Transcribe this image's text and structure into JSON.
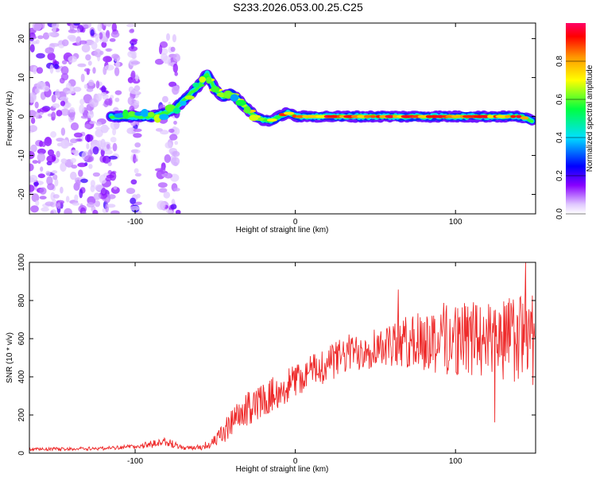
{
  "title": "S233.2026.053.00.25.C25",
  "chart_data": [
    {
      "type": "heatmap",
      "xlabel": "Height of straight line (km)",
      "ylabel": "Frequency (Hz)",
      "xlim": [
        -166,
        150
      ],
      "ylim": [
        -25,
        24
      ],
      "x_ticks": [
        -100,
        0,
        100
      ],
      "y_ticks": [
        -20,
        -10,
        0,
        10,
        20
      ],
      "ridge": {
        "description_points_x": [
          -115,
          -100,
          -90,
          -80,
          -75,
          -70,
          -65,
          -60,
          -55,
          -50,
          -45,
          -40,
          -35,
          -30,
          -25,
          -20,
          -15,
          -10,
          -5,
          0,
          10,
          20,
          40,
          60,
          80,
          100,
          120,
          140,
          148
        ],
        "frequency_hz": [
          0,
          0,
          0,
          1,
          2,
          4,
          6,
          8,
          11,
          7,
          5,
          6,
          4,
          2,
          0,
          -1,
          -1,
          0,
          1,
          0,
          0,
          0,
          0,
          0,
          0,
          0,
          0,
          0,
          -1
        ]
      },
      "noisy_region_x": [
        -166,
        -110
      ],
      "colorbar": {
        "label": "Normalized spectral amplitude",
        "range": [
          0,
          1
        ],
        "ticks": [
          "0.0",
          "0.2",
          "0.4",
          "0.6",
          "0.8"
        ]
      }
    },
    {
      "type": "line",
      "xlabel": "Height of straight line (km)",
      "ylabel": "SNR (10 * v/v)",
      "xlim": [
        -166,
        150
      ],
      "ylim": [
        0,
        1000
      ],
      "x_ticks": [
        -100,
        0,
        100
      ],
      "y_ticks": [
        0,
        200,
        400,
        600,
        800,
        1000
      ],
      "series": [
        {
          "name": "SNR",
          "color": "#ff2020",
          "envelope_x": [
            -166,
            -120,
            -100,
            -90,
            -80,
            -70,
            -60,
            -50,
            -40,
            -30,
            -20,
            -10,
            0,
            10,
            20,
            30,
            40,
            50,
            60,
            70,
            80,
            90,
            100,
            110,
            120,
            130,
            140,
            150
          ],
          "envelope_mean": [
            20,
            25,
            35,
            45,
            60,
            25,
            30,
            60,
            150,
            230,
            280,
            330,
            380,
            430,
            470,
            510,
            540,
            560,
            570,
            580,
            590,
            600,
            600,
            600,
            600,
            600,
            600,
            600
          ],
          "envelope_spread": [
            8,
            10,
            12,
            20,
            25,
            10,
            15,
            35,
            80,
            90,
            90,
            90,
            90,
            90,
            100,
            100,
            110,
            110,
            120,
            140,
            160,
            200,
            200,
            200,
            200,
            220,
            240,
            250
          ]
        }
      ]
    }
  ]
}
